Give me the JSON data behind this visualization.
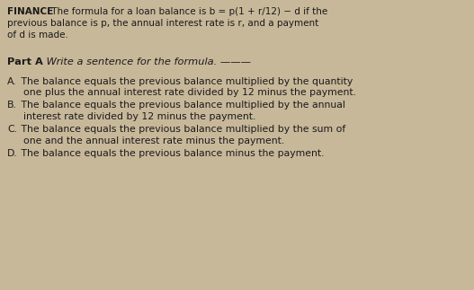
{
  "bg_color": "#c8b89a",
  "text_color": "#1a1a1a",
  "font_family": "DejaVu Sans",
  "fs_intro": 7.5,
  "fs_part": 8.2,
  "fs_options": 7.8,
  "intro_bold": "FINANCE",
  "intro_rest": " The formula for a loan balance is b = p(1 + r/12) − d if the",
  "intro_line2": "previous balance is p, the annual interest rate is r, and a payment",
  "intro_line3": "of d is made.",
  "part_bold": "Part A",
  "part_italic": " Write a sentence for the formula. ———",
  "opt_A_letter": "A.",
  "opt_A_line1": " The balance equals the previous balance multiplied by the quantity",
  "opt_A_line2": "      one plus the annual interest rate divided by 12 minus the payment.",
  "opt_B_letter": "B.",
  "opt_B_line1": " The balance equals the previous balance multiplied by the annual",
  "opt_B_line2": "      interest rate divided by 12 minus the payment.",
  "opt_C_letter": "C.",
  "opt_C_line1": " The balance equals the previous balance multiplied by the sum of",
  "opt_C_line2": "      one and the annual interest rate minus the payment.",
  "opt_D_letter": "D.",
  "opt_D_line1": " The balance equals the previous balance minus the payment."
}
